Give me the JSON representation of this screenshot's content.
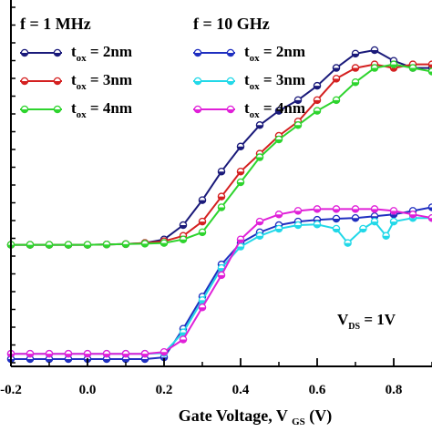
{
  "chart_data": {
    "type": "line",
    "xlabel": "Gate Voltage, V",
    "xlabel_sub": "GS",
    "xlabel_unit": "(V)",
    "xlim": [
      -0.2,
      0.9
    ],
    "x_ticks": [
      -0.2,
      0.0,
      0.2,
      0.4,
      0.6,
      0.8
    ],
    "x_tick_labels": [
      "-0.2",
      "0.0",
      "0.2",
      "0.4",
      "0.6",
      "0.8"
    ],
    "ylim": [
      0,
      10
    ],
    "annotation": {
      "main": "V",
      "sub": "DS",
      "rest": " = 1V"
    },
    "legend": {
      "left_title": "f = 1 MHz",
      "right_title": "f = 10 GHz",
      "entries_left": [
        {
          "main": "t",
          "sub": "ox",
          "rest": " = 2nm",
          "color": "#1a1a7a"
        },
        {
          "main": "t",
          "sub": "ox",
          "rest": " = 3nm",
          "color": "#d42020"
        },
        {
          "main": "t",
          "sub": "ox",
          "rest": " = 4nm",
          "color": "#2ed42e"
        }
      ],
      "entries_right": [
        {
          "main": "t",
          "sub": "ox",
          "rest": " = 2nm",
          "color": "#1f2fc0"
        },
        {
          "main": "t",
          "sub": "ox",
          "rest": " = 3nm",
          "color": "#22d8e8"
        },
        {
          "main": "t",
          "sub": "ox",
          "rest": " = 4nm",
          "color": "#e020d8"
        }
      ]
    },
    "series": [
      {
        "color": "#1a1a7a",
        "x": [
          -0.2,
          -0.15,
          -0.1,
          -0.05,
          0.0,
          0.05,
          0.1,
          0.15,
          0.2,
          0.25,
          0.3,
          0.35,
          0.4,
          0.45,
          0.5,
          0.55,
          0.6,
          0.65,
          0.7,
          0.75,
          0.8,
          0.85,
          0.9
        ],
        "y": [
          3.25,
          3.25,
          3.25,
          3.25,
          3.25,
          3.26,
          3.27,
          3.3,
          3.4,
          3.8,
          4.5,
          5.3,
          6.0,
          6.6,
          7.0,
          7.3,
          7.7,
          8.2,
          8.6,
          8.7,
          8.4,
          8.2,
          8.2
        ]
      },
      {
        "color": "#d42020",
        "x": [
          -0.2,
          -0.15,
          -0.1,
          -0.05,
          0.0,
          0.05,
          0.1,
          0.15,
          0.2,
          0.25,
          0.3,
          0.35,
          0.4,
          0.45,
          0.5,
          0.55,
          0.6,
          0.65,
          0.7,
          0.75,
          0.8,
          0.85,
          0.9
        ],
        "y": [
          3.25,
          3.25,
          3.25,
          3.25,
          3.25,
          3.26,
          3.27,
          3.3,
          3.35,
          3.5,
          3.9,
          4.6,
          5.3,
          5.8,
          6.3,
          6.7,
          7.3,
          7.9,
          8.2,
          8.3,
          8.2,
          8.3,
          8.3
        ]
      },
      {
        "color": "#2ed42e",
        "x": [
          -0.2,
          -0.15,
          -0.1,
          -0.05,
          0.0,
          0.05,
          0.1,
          0.15,
          0.2,
          0.25,
          0.3,
          0.35,
          0.4,
          0.45,
          0.5,
          0.55,
          0.6,
          0.65,
          0.7,
          0.75,
          0.8,
          0.85,
          0.9
        ],
        "y": [
          3.25,
          3.25,
          3.25,
          3.25,
          3.25,
          3.26,
          3.27,
          3.28,
          3.3,
          3.4,
          3.6,
          4.3,
          5.0,
          5.7,
          6.2,
          6.6,
          7.0,
          7.3,
          7.8,
          8.2,
          8.3,
          8.2,
          8.1
        ]
      },
      {
        "color": "#1f2fc0",
        "x": [
          -0.2,
          -0.15,
          -0.1,
          -0.05,
          0.0,
          0.05,
          0.1,
          0.15,
          0.2,
          0.25,
          0.3,
          0.35,
          0.4,
          0.45,
          0.5,
          0.55,
          0.6,
          0.65,
          0.7,
          0.75,
          0.8,
          0.85,
          0.9
        ],
        "y": [
          0.05,
          0.05,
          0.05,
          0.05,
          0.05,
          0.05,
          0.05,
          0.05,
          0.1,
          0.9,
          1.8,
          2.7,
          3.3,
          3.6,
          3.8,
          3.9,
          3.95,
          3.98,
          4.0,
          4.05,
          4.1,
          4.2,
          4.3
        ]
      },
      {
        "color": "#22d8e8",
        "x": [
          -0.2,
          -0.15,
          -0.1,
          -0.05,
          0.0,
          0.05,
          0.1,
          0.15,
          0.2,
          0.25,
          0.3,
          0.35,
          0.4,
          0.45,
          0.5,
          0.55,
          0.6,
          0.65,
          0.68,
          0.72,
          0.75,
          0.78,
          0.8,
          0.85,
          0.9
        ],
        "y": [
          0.2,
          0.2,
          0.2,
          0.2,
          0.2,
          0.2,
          0.2,
          0.2,
          0.22,
          0.8,
          1.7,
          2.6,
          3.2,
          3.5,
          3.7,
          3.8,
          3.82,
          3.7,
          3.3,
          3.7,
          3.9,
          3.5,
          3.9,
          4.0,
          4.0
        ]
      },
      {
        "color": "#e020d8",
        "x": [
          -0.2,
          -0.15,
          -0.1,
          -0.05,
          0.0,
          0.05,
          0.1,
          0.15,
          0.2,
          0.25,
          0.3,
          0.35,
          0.4,
          0.45,
          0.5,
          0.55,
          0.6,
          0.65,
          0.7,
          0.75,
          0.8,
          0.85,
          0.9
        ],
        "y": [
          0.2,
          0.2,
          0.2,
          0.2,
          0.2,
          0.2,
          0.2,
          0.2,
          0.25,
          0.6,
          1.5,
          2.4,
          3.4,
          3.9,
          4.1,
          4.2,
          4.25,
          4.25,
          4.25,
          4.25,
          4.2,
          4.1,
          4.0
        ]
      }
    ]
  }
}
